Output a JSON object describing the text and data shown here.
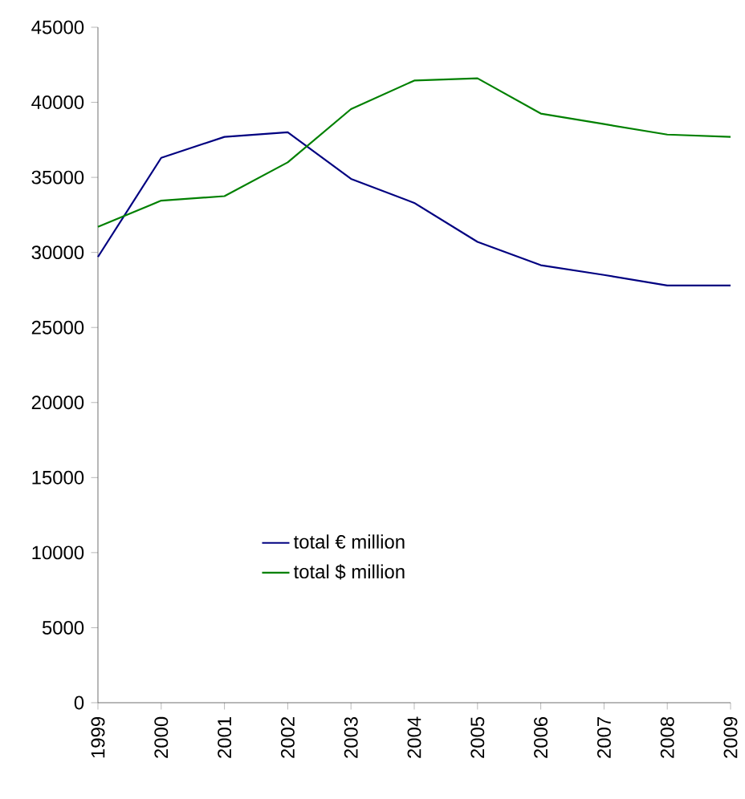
{
  "chart_data": {
    "type": "line",
    "categories": [
      "1999",
      "2000",
      "2001",
      "2002",
      "2003",
      "2004",
      "2005",
      "2006",
      "2007",
      "2008",
      "2009"
    ],
    "series": [
      {
        "name": "total € million",
        "color": "#000080",
        "values": [
          29700,
          36300,
          37700,
          38000,
          34900,
          33300,
          30700,
          29150,
          28500,
          27800,
          27800
        ]
      },
      {
        "name": "total $ million",
        "color": "#008000",
        "values": [
          31700,
          33450,
          33750,
          36000,
          39550,
          41450,
          41600,
          39250,
          38550,
          37850,
          37700
        ]
      }
    ],
    "ylim": [
      0,
      45000
    ],
    "yticks": [
      0,
      5000,
      10000,
      15000,
      20000,
      25000,
      30000,
      35000,
      40000,
      45000
    ],
    "grid": false,
    "legend": "bottom left",
    "marker": "none",
    "line_style": "solid"
  }
}
